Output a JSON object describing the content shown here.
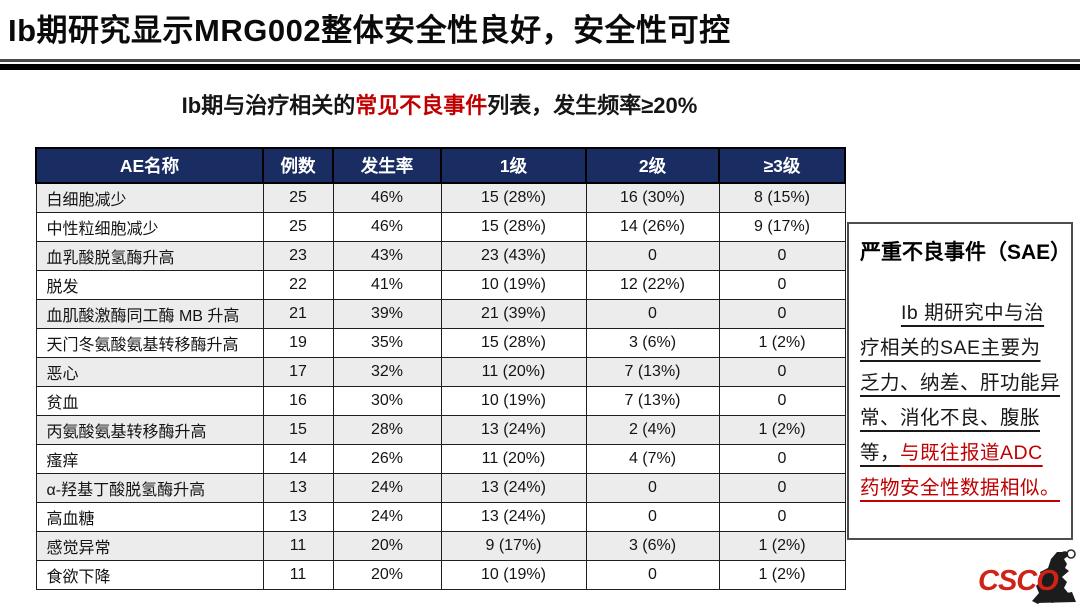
{
  "slide": {
    "title": "Ib期研究显示MRG002整体安全性良好，安全性可控",
    "subtitle": {
      "prefix": "Ib期与治疗相关的",
      "highlight": "常见不良事件",
      "suffix": "列表，发生频率≥20%"
    }
  },
  "table": {
    "headers": [
      "AE名称",
      "例数",
      "发生率",
      "1级",
      "2级",
      "≥3级"
    ],
    "rows": [
      [
        "白细胞减少",
        "25",
        "46%",
        "15 (28%)",
        "16 (30%)",
        "8 (15%)"
      ],
      [
        "中性粒细胞减少",
        "25",
        "46%",
        "15 (28%)",
        "14 (26%)",
        "9 (17%)"
      ],
      [
        "血乳酸脱氢酶升高",
        "23",
        "43%",
        "23 (43%)",
        "0",
        "0"
      ],
      [
        "脱发",
        "22",
        "41%",
        "10 (19%)",
        "12 (22%)",
        "0"
      ],
      [
        "血肌酸激酶同工酶 MB 升高",
        "21",
        "39%",
        "21 (39%)",
        "0",
        "0"
      ],
      [
        "天门冬氨酸氨基转移酶升高",
        "19",
        "35%",
        "15 (28%)",
        "3 (6%)",
        "1 (2%)"
      ],
      [
        "恶心",
        "17",
        "32%",
        "11 (20%)",
        "7 (13%)",
        "0"
      ],
      [
        "贫血",
        "16",
        "30%",
        "10 (19%)",
        "7 (13%)",
        "0"
      ],
      [
        "丙氨酸氨基转移酶升高",
        "15",
        "28%",
        "13 (24%)",
        "2 (4%)",
        "1 (2%)"
      ],
      [
        "瘙痒",
        "14",
        "26%",
        "11 (20%)",
        "4 (7%)",
        "0"
      ],
      [
        "α-羟基丁酸脱氢酶升高",
        "13",
        "24%",
        "13 (24%)",
        "0",
        "0"
      ],
      [
        "高血糖",
        "13",
        "24%",
        "13 (24%)",
        "0",
        "0"
      ],
      [
        "感觉异常",
        "11",
        "20%",
        "9 (17%)",
        "3 (6%)",
        "1 (2%)"
      ],
      [
        "食欲下降",
        "11",
        "20%",
        "10 (19%)",
        "0",
        "1 (2%)"
      ]
    ]
  },
  "sae_box": {
    "title": "严重不良事件（SAE）",
    "body_black": "Ib 期研究中与治疗相关的SAE主要为乏力、纳差、肝功能异常、消化不良、腹胀等，",
    "body_red": "与既往报道ADC药物安全性数据相似。"
  },
  "logo": {
    "text": "CSCO"
  },
  "colors": {
    "header_bg": "#1a2d62",
    "accent_red": "#c00000",
    "row_alt": "#ececec",
    "logo_red": "#cf2318"
  }
}
